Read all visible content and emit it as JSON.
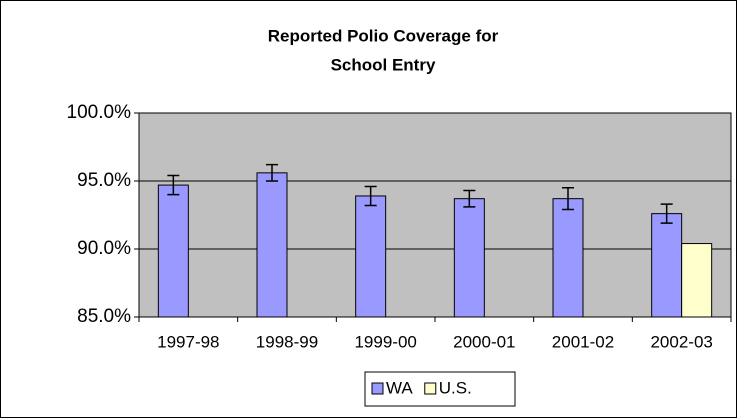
{
  "chart_data": {
    "type": "bar",
    "title": [
      "Reported Polio Coverage for",
      "School Entry"
    ],
    "categories": [
      "1997-98",
      "1998-99",
      "1999-00",
      "2000-01",
      "2001-02",
      "2002-03"
    ],
    "series": [
      {
        "name": "WA",
        "color": "#9999ff",
        "values": [
          94.7,
          95.6,
          93.9,
          93.7,
          93.7,
          92.6
        ],
        "errors": [
          0.7,
          0.6,
          0.7,
          0.6,
          0.8,
          0.7
        ]
      },
      {
        "name": "U.S.",
        "color": "#ffffcc",
        "values": [
          null,
          null,
          null,
          null,
          null,
          90.4
        ]
      }
    ],
    "ylim": [
      85,
      100
    ],
    "yticks": [
      {
        "value": 85,
        "label": "85.0%"
      },
      {
        "value": 90,
        "label": "90.0%"
      },
      {
        "value": 95,
        "label": "95.0%"
      },
      {
        "value": 100,
        "label": "100.0%"
      }
    ],
    "grid": true,
    "plot_background": "#c0c0c0",
    "legend": "bottom"
  }
}
